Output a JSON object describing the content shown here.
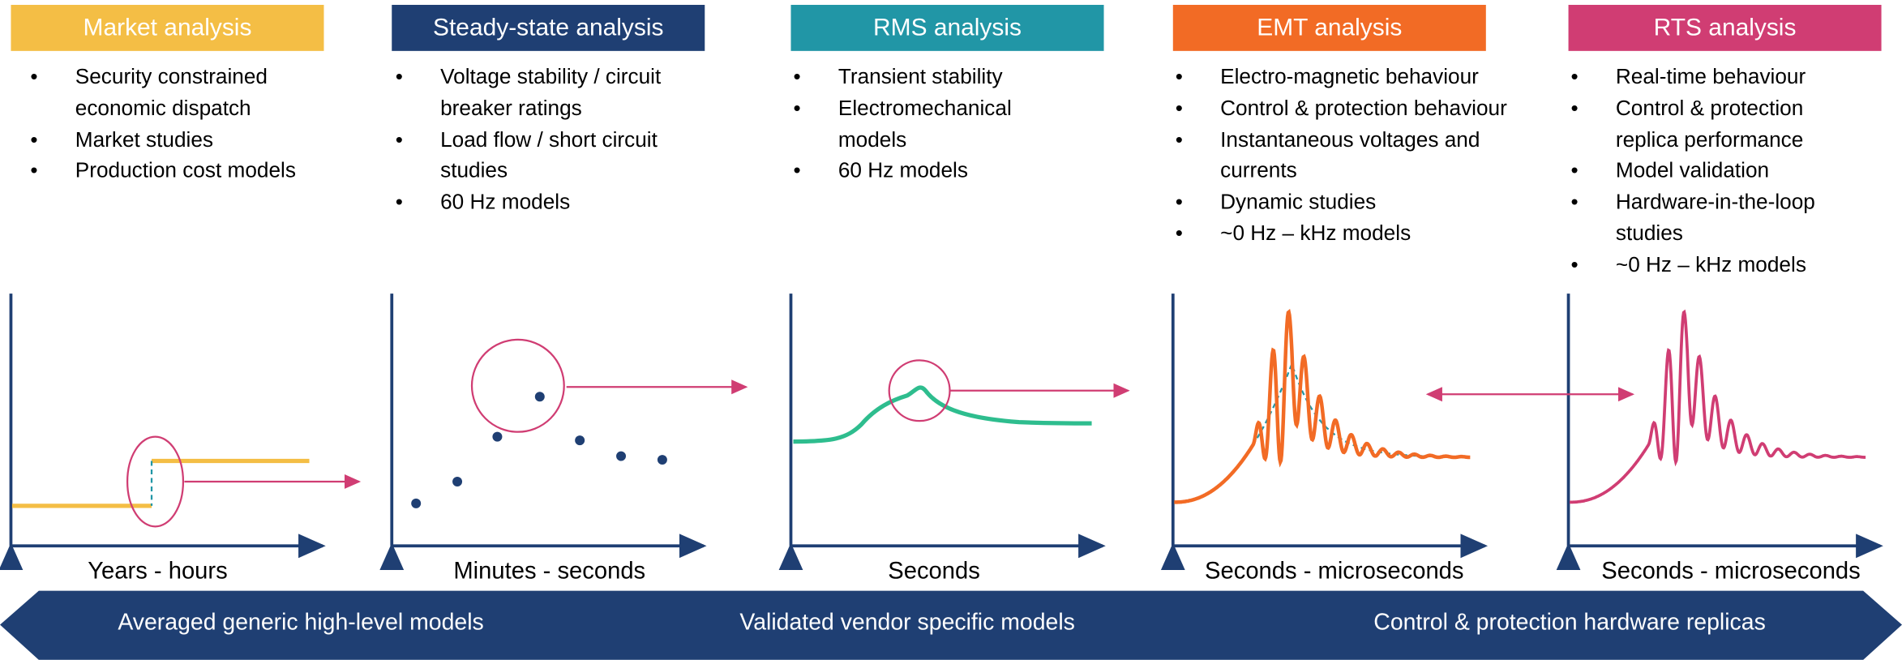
{
  "panels": [
    {
      "header": "Market analysis",
      "bullets": [
        "Security constrained economic dispatch",
        "Market studies",
        "Production cost models"
      ],
      "axis_label": "Years - hours"
    },
    {
      "header": "Steady-state analysis",
      "bullets": [
        "Voltage stability / circuit breaker ratings",
        "Load flow / short circuit studies",
        "60 Hz models"
      ],
      "axis_label": "Minutes - seconds"
    },
    {
      "header": "RMS analysis",
      "bullets": [
        "Transient stability",
        "Electromechanical models",
        "60 Hz models"
      ],
      "axis_label": "Seconds"
    },
    {
      "header": "EMT analysis",
      "bullets": [
        "Electro-magnetic behaviour",
        "Control & protection behaviour",
        "Instantaneous voltages and currents",
        "Dynamic studies",
        "~0 Hz – kHz models"
      ],
      "axis_label": "Seconds - microseconds"
    },
    {
      "header": "RTS analysis",
      "bullets": [
        "Real-time behaviour",
        "Control & protection replica performance",
        "Model validation",
        "Hardware-in-the-loop studies",
        "~0 Hz – kHz models"
      ],
      "axis_label": "Seconds - microseconds"
    }
  ],
  "bottom_arrow": {
    "labels": [
      "Averaged generic high-level models",
      "Validated vendor specific models",
      "Control & protection hardware replicas"
    ]
  }
}
